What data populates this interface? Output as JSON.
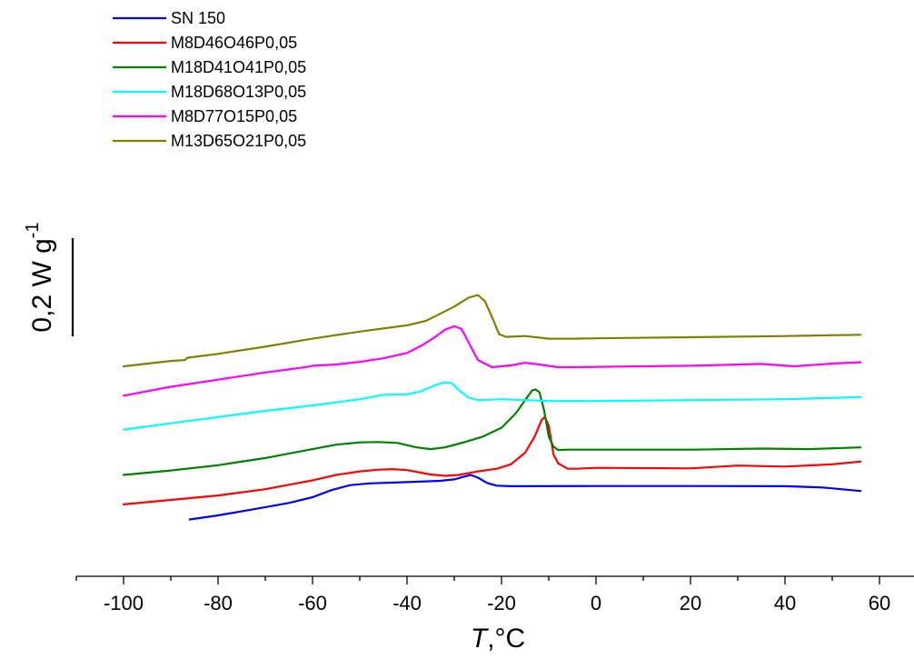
{
  "chart_data": {
    "type": "line",
    "xlabel": {
      "italic": "T",
      "rest": ",°C"
    },
    "ylabel": {
      "text": "0,2 W g",
      "sup": "-1"
    },
    "xlim": [
      -110,
      70
    ],
    "xticks": [
      -100,
      -80,
      -60,
      -40,
      -20,
      0,
      20,
      40,
      60
    ],
    "grid": false,
    "legend_position": "top-left",
    "series": [
      {
        "name": "SN 150",
        "color": "#0000ff",
        "points": [
          [
            -86,
            3.65
          ],
          [
            -80,
            3.42
          ],
          [
            -72,
            3.05
          ],
          [
            -65,
            2.72
          ],
          [
            -60,
            2.4
          ],
          [
            -56,
            2.0
          ],
          [
            -52,
            1.72
          ],
          [
            -48,
            1.62
          ],
          [
            -40,
            1.55
          ],
          [
            -33,
            1.48
          ],
          [
            -30,
            1.4
          ],
          [
            -28,
            1.25
          ],
          [
            -26.5,
            1.15
          ],
          [
            -25,
            1.3
          ],
          [
            -23,
            1.6
          ],
          [
            -21,
            1.75
          ],
          [
            -18,
            1.78
          ],
          [
            0,
            1.77
          ],
          [
            20,
            1.77
          ],
          [
            40,
            1.78
          ],
          [
            48,
            1.85
          ],
          [
            56,
            2.05
          ]
        ]
      },
      {
        "name": "M8D46O46P0,05",
        "color": "#ff0000",
        "points": [
          [
            -100,
            2.8
          ],
          [
            -90,
            2.55
          ],
          [
            -80,
            2.3
          ],
          [
            -70,
            1.95
          ],
          [
            -60,
            1.45
          ],
          [
            -55,
            1.15
          ],
          [
            -50,
            0.95
          ],
          [
            -46,
            0.85
          ],
          [
            -43,
            0.82
          ],
          [
            -40,
            0.88
          ],
          [
            -35,
            1.12
          ],
          [
            -32,
            1.2
          ],
          [
            -29,
            1.15
          ],
          [
            -25,
            0.95
          ],
          [
            -21,
            0.8
          ],
          [
            -18,
            0.55
          ],
          [
            -15,
            -0.1
          ],
          [
            -13,
            -1.0
          ],
          [
            -11.5,
            -1.95
          ],
          [
            -10.8,
            -2.1
          ],
          [
            -10,
            -1.6
          ],
          [
            -9,
            0.0
          ],
          [
            -8,
            0.5
          ],
          [
            -6,
            0.8
          ],
          [
            -4,
            0.8
          ],
          [
            0,
            0.75
          ],
          [
            20,
            0.78
          ],
          [
            30,
            0.62
          ],
          [
            40,
            0.68
          ],
          [
            50,
            0.55
          ],
          [
            56,
            0.4
          ]
        ]
      },
      {
        "name": "M18D41O41P0,05",
        "color": "#008000",
        "points": [
          [
            -100,
            1.15
          ],
          [
            -90,
            0.9
          ],
          [
            -80,
            0.6
          ],
          [
            -70,
            0.2
          ],
          [
            -60,
            -0.3
          ],
          [
            -55,
            -0.55
          ],
          [
            -50,
            -0.68
          ],
          [
            -46,
            -0.7
          ],
          [
            -42,
            -0.65
          ],
          [
            -38,
            -0.4
          ],
          [
            -35,
            -0.3
          ],
          [
            -32,
            -0.4
          ],
          [
            -28,
            -0.68
          ],
          [
            -24,
            -1.0
          ],
          [
            -20,
            -1.5
          ],
          [
            -17,
            -2.3
          ],
          [
            -15,
            -3.05
          ],
          [
            -13.5,
            -3.6
          ],
          [
            -12.8,
            -3.65
          ],
          [
            -12,
            -3.5
          ],
          [
            -11,
            -2.5
          ],
          [
            -10,
            -1.0
          ],
          [
            -9,
            -0.45
          ],
          [
            -8,
            -0.25
          ],
          [
            -6,
            -0.27
          ],
          [
            0,
            -0.27
          ],
          [
            20,
            -0.27
          ],
          [
            35,
            -0.33
          ],
          [
            45,
            -0.3
          ],
          [
            56,
            -0.4
          ]
        ]
      },
      {
        "name": "M18D68O13P0,05",
        "color": "#00ffff",
        "points": [
          [
            -100,
            -1.4
          ],
          [
            -90,
            -1.75
          ],
          [
            -80,
            -2.1
          ],
          [
            -70,
            -2.45
          ],
          [
            -60,
            -2.75
          ],
          [
            -50,
            -3.1
          ],
          [
            -45,
            -3.35
          ],
          [
            -40,
            -3.38
          ],
          [
            -37,
            -3.55
          ],
          [
            -34,
            -3.9
          ],
          [
            -32,
            -4.05
          ],
          [
            -30.5,
            -4.0
          ],
          [
            -29,
            -3.6
          ],
          [
            -27,
            -3.2
          ],
          [
            -25,
            -3.05
          ],
          [
            -20,
            -3.1
          ],
          [
            -15,
            -3.05
          ],
          [
            -10,
            -3.0
          ],
          [
            -5,
            -3.0
          ],
          [
            0,
            -3.0
          ],
          [
            20,
            -3.05
          ],
          [
            40,
            -3.1
          ],
          [
            56,
            -3.22
          ]
        ]
      },
      {
        "name": "M8D77O15P0,05",
        "color": "#ff00ff",
        "points": [
          [
            -100,
            -3.3
          ],
          [
            -90,
            -3.8
          ],
          [
            -80,
            -4.2
          ],
          [
            -70,
            -4.6
          ],
          [
            -61,
            -4.92
          ],
          [
            -60,
            -4.98
          ],
          [
            -55,
            -5.05
          ],
          [
            -50,
            -5.2
          ],
          [
            -45,
            -5.4
          ],
          [
            -40,
            -5.7
          ],
          [
            -37,
            -6.1
          ],
          [
            -34,
            -6.6
          ],
          [
            -32,
            -7.0
          ],
          [
            -30,
            -7.2
          ],
          [
            -28.5,
            -7.05
          ],
          [
            -27,
            -6.3
          ],
          [
            -25,
            -5.3
          ],
          [
            -22,
            -4.9
          ],
          [
            -18,
            -5.0
          ],
          [
            -15,
            -5.15
          ],
          [
            -12,
            -5.05
          ],
          [
            -8,
            -4.9
          ],
          [
            -5,
            -4.9
          ],
          [
            0,
            -4.92
          ],
          [
            20,
            -4.98
          ],
          [
            35,
            -5.08
          ],
          [
            42,
            -4.95
          ],
          [
            50,
            -5.1
          ],
          [
            56,
            -5.18
          ]
        ]
      },
      {
        "name": "M13D65O21P0,05",
        "color": "#808000",
        "points": [
          [
            -100,
            -4.95
          ],
          [
            -90,
            -5.25
          ],
          [
            -87,
            -5.3
          ],
          [
            -86.5,
            -5.43
          ],
          [
            -80,
            -5.65
          ],
          [
            -70,
            -6.05
          ],
          [
            -60,
            -6.5
          ],
          [
            -50,
            -6.9
          ],
          [
            -40,
            -7.25
          ],
          [
            -36,
            -7.5
          ],
          [
            -33,
            -7.9
          ],
          [
            -30,
            -8.3
          ],
          [
            -27,
            -8.8
          ],
          [
            -25,
            -8.95
          ],
          [
            -23.5,
            -8.6
          ],
          [
            -22,
            -7.7
          ],
          [
            -20.5,
            -6.75
          ],
          [
            -19,
            -6.6
          ],
          [
            -15,
            -6.65
          ],
          [
            -10,
            -6.5
          ],
          [
            -5,
            -6.5
          ],
          [
            0,
            -6.52
          ],
          [
            20,
            -6.58
          ],
          [
            40,
            -6.65
          ],
          [
            56,
            -6.72
          ]
        ]
      }
    ]
  }
}
